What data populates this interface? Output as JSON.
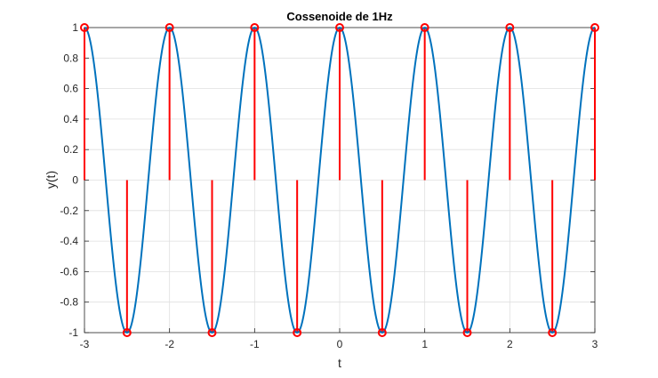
{
  "chart_data": {
    "type": "line",
    "title": "Cossenoide de 1Hz",
    "xlabel": "t",
    "ylabel": "y(t)",
    "xlim": [
      -3,
      3
    ],
    "ylim": [
      -1,
      1
    ],
    "grid": true,
    "x_ticks": [
      -3,
      -2,
      -1,
      0,
      1,
      2,
      3
    ],
    "y_ticks": [
      -1,
      -0.8,
      -0.6,
      -0.4,
      -0.2,
      0,
      0.2,
      0.4,
      0.6,
      0.8,
      1
    ],
    "x_tick_labels": [
      "-3",
      "-2",
      "-1",
      "0",
      "1",
      "2",
      "3"
    ],
    "y_tick_labels": [
      "-1",
      "-0.8",
      "-0.6",
      "-0.4",
      "-0.2",
      "0",
      "0.2",
      "0.4",
      "0.6",
      "0.8",
      "1"
    ],
    "continuous": {
      "function": "cos(2*pi*t)",
      "frequency_hz": 1,
      "color": "#0072BD"
    },
    "samples": {
      "color": "#FF0000",
      "marker": "circle",
      "x": [
        -3,
        -2.5,
        -2,
        -1.5,
        -1,
        -0.5,
        0,
        0.5,
        1,
        1.5,
        2,
        2.5,
        3
      ],
      "y": [
        1,
        -1,
        1,
        -1,
        1,
        -1,
        1,
        -1,
        1,
        -1,
        1,
        -1,
        1
      ]
    },
    "colors": {
      "axis": "#262626",
      "grid": "#dfdfdf"
    }
  }
}
